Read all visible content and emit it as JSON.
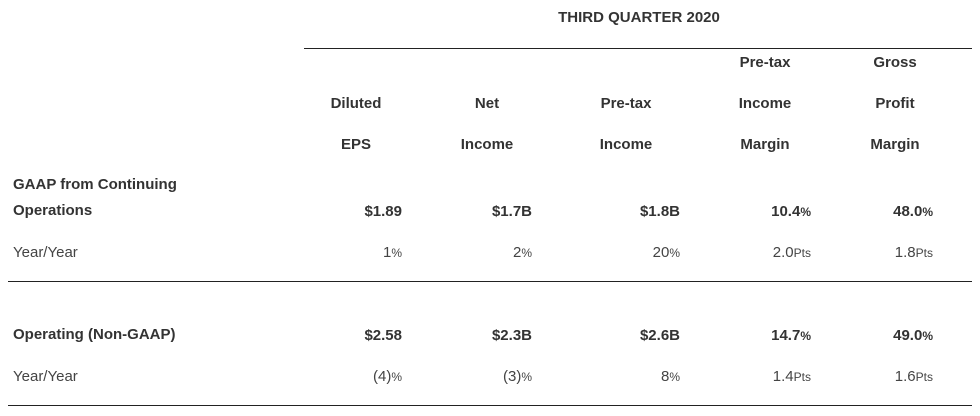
{
  "title": "THIRD QUARTER 2020",
  "columns": [
    {
      "line1": "",
      "line2": "Diluted",
      "line3": "EPS"
    },
    {
      "line1": "",
      "line2": "Net",
      "line3": "Income"
    },
    {
      "line1": "",
      "line2": "Pre-tax",
      "line3": "Income"
    },
    {
      "line1": "Pre-tax",
      "line2": "Income",
      "line3": "Margin"
    },
    {
      "line1": "Gross",
      "line2": "Profit",
      "line3": "Margin"
    }
  ],
  "rows": {
    "gaap": {
      "label_line1": "GAAP from Continuing",
      "label_line2": "Operations",
      "values": [
        {
          "main": "$1.89",
          "suffix": ""
        },
        {
          "main": "$1.7B",
          "suffix": ""
        },
        {
          "main": "$1.8B",
          "suffix": ""
        },
        {
          "main": "10.4",
          "suffix": "%"
        },
        {
          "main": "48.0",
          "suffix": "%"
        }
      ]
    },
    "gaap_yoy": {
      "label": "Year/Year",
      "values": [
        {
          "main": "1",
          "suffix": "%"
        },
        {
          "main": "2",
          "suffix": "%"
        },
        {
          "main": "20",
          "suffix": "%"
        },
        {
          "main": "2.0",
          "suffix": "Pts"
        },
        {
          "main": "1.8",
          "suffix": "Pts"
        }
      ]
    },
    "operating": {
      "label": "Operating (Non-GAAP)",
      "values": [
        {
          "main": "$2.58",
          "suffix": ""
        },
        {
          "main": "$2.3B",
          "suffix": ""
        },
        {
          "main": "$2.6B",
          "suffix": ""
        },
        {
          "main": "14.7",
          "suffix": "%"
        },
        {
          "main": "49.0",
          "suffix": "%"
        }
      ]
    },
    "operating_yoy": {
      "label": "Year/Year",
      "values": [
        {
          "main": "(4)",
          "suffix": "%"
        },
        {
          "main": "(3)",
          "suffix": "%"
        },
        {
          "main": "8",
          "suffix": "%"
        },
        {
          "main": "1.4",
          "suffix": "Pts"
        },
        {
          "main": "1.6",
          "suffix": "Pts"
        }
      ]
    }
  }
}
